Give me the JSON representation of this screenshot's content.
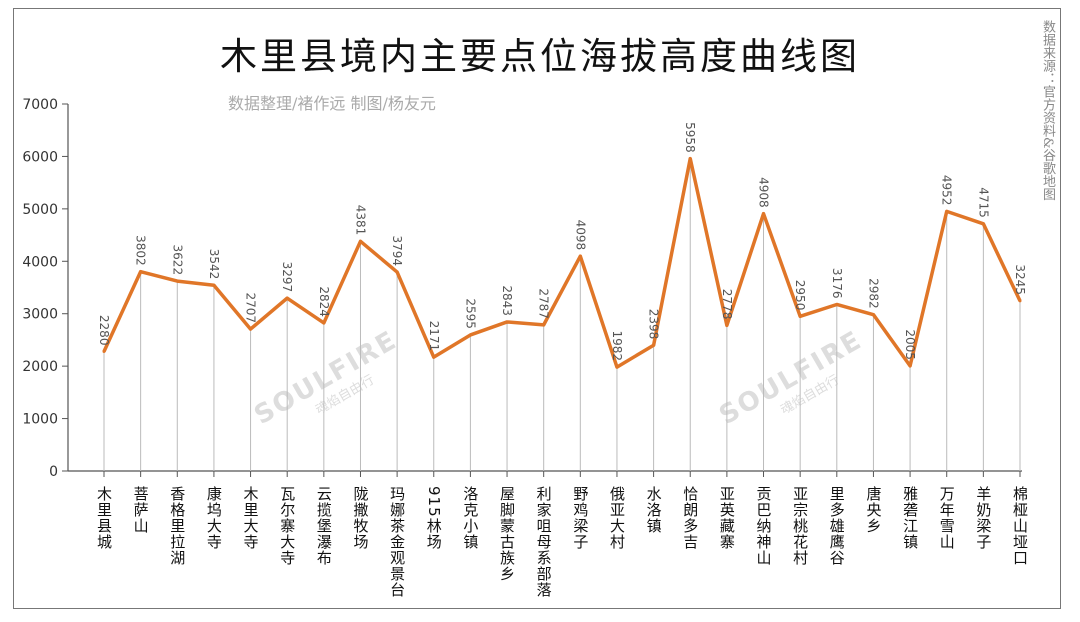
{
  "chart_data": {
    "type": "line",
    "title": "木里县境内主要点位海拔高度曲线图",
    "subtitle": "数据整理/褚作远    制图/杨友元",
    "source": "数据来源：官方资料&谷歌地图",
    "watermark": "SOULFIRE 魂焰自由行",
    "xlabel": "",
    "ylabel": "",
    "ylim": [
      0,
      7000
    ],
    "yticks": [
      0,
      1000,
      2000,
      3000,
      4000,
      5000,
      6000,
      7000
    ],
    "grid": false,
    "line_color": "#E07628",
    "categories": [
      "木里县城",
      "菩萨山",
      "香格里拉湖",
      "康坞大寺",
      "木里大寺",
      "瓦尔寨大寺",
      "云揽堡瀑布",
      "陇撒牧场",
      "玛娜茶金观景台",
      "915林场",
      "洛克小镇",
      "屋脚蒙古族乡",
      "利家咀母系部落",
      "野鸡梁子",
      "俄亚大村",
      "水洛镇",
      "恰朗多吉",
      "亚英藏寨",
      "贡巴纳神山",
      "亚宗桃花村",
      "里多雄鹰谷",
      "唐央乡",
      "雅砻江镇",
      "万年雪山",
      "羊奶梁子",
      "棉桠山垭口"
    ],
    "values": [
      2280,
      3802,
      3622,
      3542,
      2707,
      3297,
      2824,
      4381,
      3794,
      2171,
      2595,
      2843,
      2787,
      4098,
      1982,
      2398,
      5958,
      2778,
      4908,
      2950,
      3176,
      2982,
      2005,
      4952,
      4715,
      3245
    ]
  }
}
